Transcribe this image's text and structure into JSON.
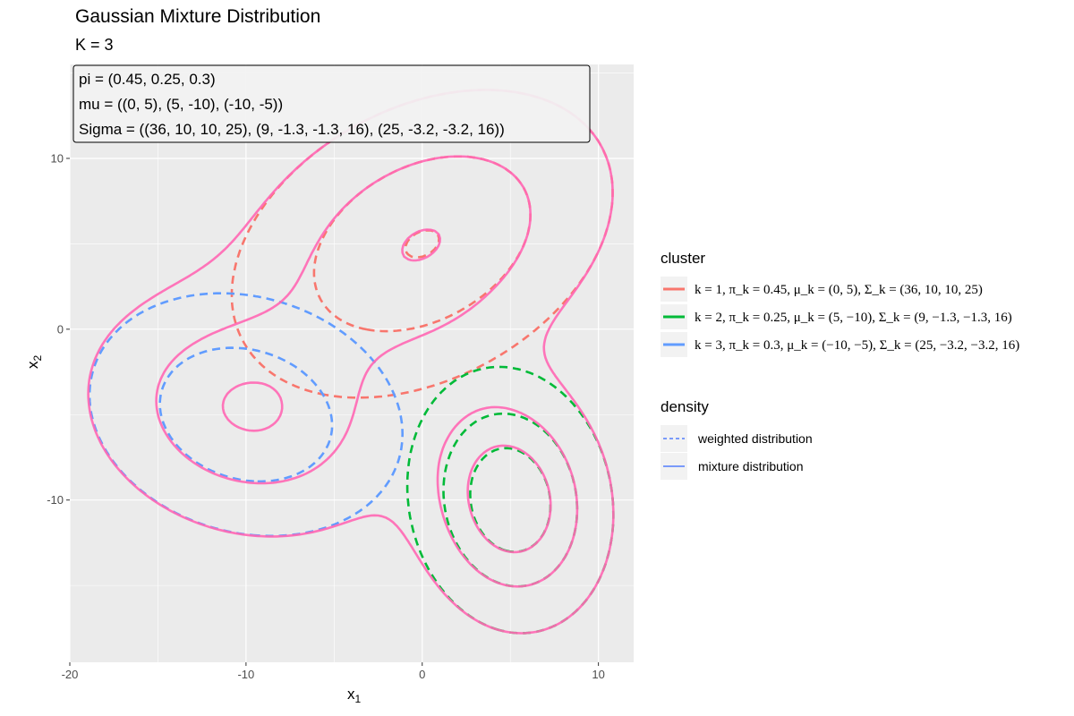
{
  "chart_data": {
    "type": "contour",
    "title": "Gaussian Mixture Distribution",
    "subtitle": "K = 3",
    "annotation": [
      "pi = (0.45, 0.25, 0.3)",
      "mu = ((0, 5), (5, -10), (-10, -5))",
      "Sigma = ((36, 10, 10, 25), (9, -1.3, -1.3, 16), (25, -3.2, -3.2, 16))"
    ],
    "xlabel": "x",
    "xlabel_sub": "1",
    "ylabel": "x",
    "ylabel_sub": "2",
    "xlim": [
      -20,
      12
    ],
    "ylim": [
      -19.5,
      15.5
    ],
    "x_ticks": [
      -20,
      -10,
      0,
      10
    ],
    "y_ticks": [
      -10,
      0,
      10
    ],
    "grid": true,
    "legend_position": "right",
    "contour_levels": [
      0.0005,
      0.0015,
      0.0025,
      0.0035,
      0.0045
    ],
    "components": [
      {
        "k": 1,
        "pi": 0.45,
        "mu": [
          0,
          5
        ],
        "sigma": [
          36,
          10,
          10,
          25
        ],
        "color": "#F8766D",
        "label": "k = 1, π_k = 0.45, μ_k = (0, 5), Σ_k = (36, 10, 10, 25)"
      },
      {
        "k": 2,
        "pi": 0.25,
        "mu": [
          5,
          -10
        ],
        "sigma": [
          9,
          -1.3,
          -1.3,
          16
        ],
        "color": "#00BA38",
        "label": "k = 2, π_k = 0.25, μ_k = (5, −10), Σ_k = (9, −1.3, −1.3, 16)"
      },
      {
        "k": 3,
        "pi": 0.3,
        "mu": [
          -10,
          -5
        ],
        "sigma": [
          25,
          -3.2,
          -3.2,
          16
        ],
        "color": "#619CFF",
        "label": "k = 3, π_k = 0.3, μ_k = (−10, −5), Σ_k = (25, −3.2, −3.2, 16)"
      }
    ],
    "mixture_color": "#FF69B4",
    "legend": {
      "cluster_title": "cluster",
      "density_title": "density",
      "density_items": [
        {
          "label": "weighted distribution",
          "style": "dashed"
        },
        {
          "label": "mixture distribution",
          "style": "solid"
        }
      ]
    }
  }
}
